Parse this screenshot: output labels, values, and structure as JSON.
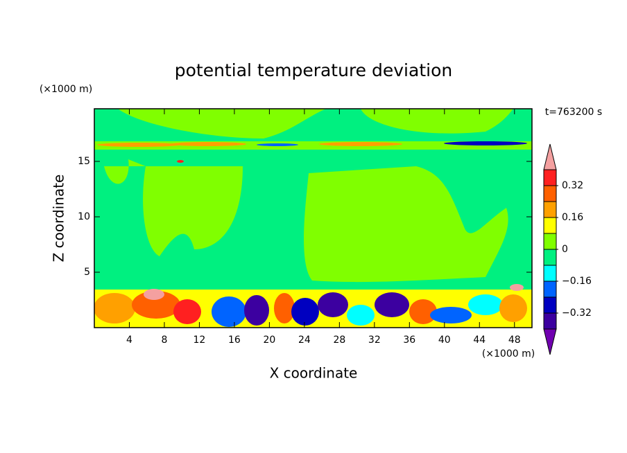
{
  "chart_data": {
    "type": "contour",
    "title": "potential temperature deviation",
    "x_label": "X coordinate",
    "y_label": "Z coordinate",
    "x_unit": "(×1000 m)",
    "y_unit": "(×1000 m)",
    "annotation": "t=763200 s",
    "xlim": [
      0,
      50
    ],
    "ylim": [
      0,
      19.75
    ],
    "xticks": [
      4,
      8,
      12,
      16,
      20,
      24,
      28,
      32,
      36,
      40,
      44,
      48
    ],
    "yticks": [
      5,
      10,
      15
    ],
    "colorbar": {
      "levels": [
        -0.4,
        -0.32,
        -0.24,
        -0.16,
        -0.08,
        0,
        0.08,
        0.16,
        0.24,
        0.32,
        0.4
      ],
      "colors": [
        "#7000b0",
        "#3c00a0",
        "#0000c0",
        "#0064ff",
        "#00ffff",
        "#00f080",
        "#80ff00",
        "#ffff00",
        "#ffa000",
        "#ff6000",
        "#ff2020",
        "#f4a0a0"
      ],
      "ticks": [
        0.32,
        0.16,
        0,
        {
          "value": -0.16,
          "label": "−0.16"
        },
        {
          "value": -0.32,
          "label": "−0.32"
        }
      ]
    }
  }
}
